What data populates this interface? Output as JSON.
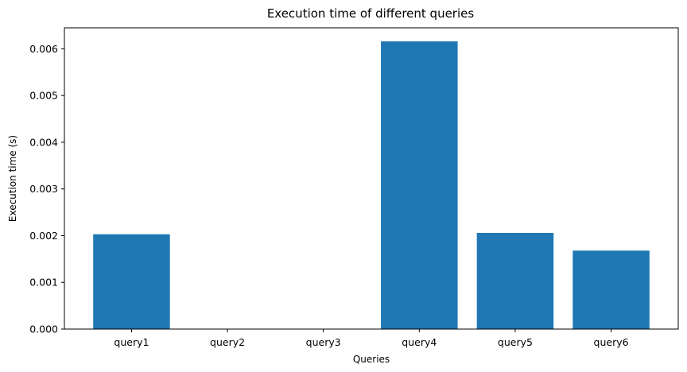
{
  "chart_data": {
    "type": "bar",
    "title": "Execution time of different queries",
    "xlabel": "Queries",
    "ylabel": "Execution time (s)",
    "categories": [
      "query1",
      "query2",
      "query3",
      "query4",
      "query5",
      "query6"
    ],
    "values": [
      0.00203,
      0.0,
      0.0,
      0.00616,
      0.00206,
      0.00168
    ],
    "ylim": [
      0,
      0.00645
    ],
    "yticks": [
      0.0,
      0.001,
      0.002,
      0.003,
      0.004,
      0.005,
      0.006
    ],
    "ytick_labels": [
      "0.000",
      "0.001",
      "0.002",
      "0.003",
      "0.004",
      "0.005",
      "0.006"
    ],
    "grid": false,
    "bar_color": "#1f77b4"
  }
}
